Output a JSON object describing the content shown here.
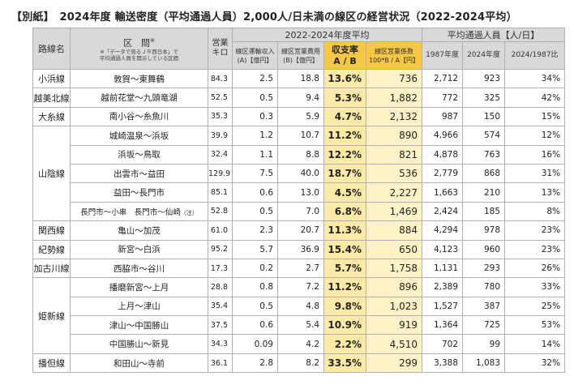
{
  "title": "【別紙】　2024年度 輸送密度（平均通過人員）2,000人/日未満の線区の経営状況（2022-2024平均）",
  "header": {
    "route": "路線名",
    "section": "区　間",
    "section_mark": "※",
    "section_note": "※「データで見るＪＲ西日本」で\n平均通過人員を開示している区間",
    "km": "営業\nキロ",
    "group_2022": "2022-2024年度平均",
    "group_pass": "平均通過人員【人/日】",
    "revenue": "線区運輸収入\n(A)【億円】",
    "cost": "線区営業費用\n(B)【億円】",
    "ratio": "収支率\nA / B",
    "factor": "線区営業係数\n100*B / A【円】",
    "y1987": "1987年度",
    "y2024": "2024年度",
    "change": "2024/1987比"
  },
  "rows": [
    {
      "route": "小浜線",
      "section": "敦賀～東舞鶴",
      "km": "84.3",
      "rev": "2.5",
      "cost": "18.8",
      "ratio": "13.6%",
      "factor": "736",
      "y1987": "2,712",
      "y2024": "923",
      "change": "34%"
    },
    {
      "route": "越美北線",
      "section": "越前花堂～九頭竜湖",
      "km": "52.5",
      "rev": "0.5",
      "cost": "9.4",
      "ratio": "5.3%",
      "factor": "1,882",
      "y1987": "772",
      "y2024": "325",
      "change": "42%"
    },
    {
      "route": "大糸線",
      "section": "南小谷～糸魚川",
      "km": "35.3",
      "rev": "0.3",
      "cost": "5.9",
      "ratio": "4.7%",
      "factor": "2,132",
      "y1987": "987",
      "y2024": "150",
      "change": "15%"
    },
    {
      "route": "山陰線",
      "section": "城崎温泉～浜坂",
      "km": "39.9",
      "rev": "1.2",
      "cost": "10.7",
      "ratio": "11.2%",
      "factor": "890",
      "y1987": "4,966",
      "y2024": "574",
      "change": "12%"
    },
    {
      "route": "",
      "section": "浜坂～鳥取",
      "km": "32.4",
      "rev": "1.1",
      "cost": "8.8",
      "ratio": "12.2%",
      "factor": "821",
      "y1987": "4,878",
      "y2024": "763",
      "change": "16%"
    },
    {
      "route": "",
      "section": "出雲市～益田",
      "km": "129.9",
      "rev": "7.5",
      "cost": "40.0",
      "ratio": "18.7%",
      "factor": "536",
      "y1987": "2,779",
      "y2024": "868",
      "change": "31%"
    },
    {
      "route": "",
      "section": "益田～長門市",
      "km": "85.1",
      "rev": "0.6",
      "cost": "13.0",
      "ratio": "4.5%",
      "factor": "2,227",
      "y1987": "1,663",
      "y2024": "210",
      "change": "13%"
    },
    {
      "route": "",
      "section": "長門市～小串　長門市～仙崎",
      "section_note": "（注）",
      "km": "52.8",
      "rev": "0.5",
      "cost": "7.0",
      "ratio": "6.8%",
      "factor": "1,469",
      "y1987": "2,424",
      "y2024": "185",
      "change": "8%"
    },
    {
      "route": "関西線",
      "section": "亀山～加茂",
      "km": "61.0",
      "rev": "2.3",
      "cost": "20.7",
      "ratio": "11.3%",
      "factor": "884",
      "y1987": "4,294",
      "y2024": "978",
      "change": "23%"
    },
    {
      "route": "紀勢線",
      "section": "新宮～白浜",
      "km": "95.2",
      "rev": "5.7",
      "cost": "36.9",
      "ratio": "15.4%",
      "factor": "650",
      "y1987": "4,123",
      "y2024": "960",
      "change": "23%"
    },
    {
      "route": "加古川線",
      "section": "西脇市～谷川",
      "km": "17.3",
      "rev": "0.2",
      "cost": "2.7",
      "ratio": "5.7%",
      "factor": "1,758",
      "y1987": "1,131",
      "y2024": "293",
      "change": "26%"
    },
    {
      "route": "姫新線",
      "section": "播磨新宮～上月",
      "km": "28.8",
      "rev": "0.8",
      "cost": "7.2",
      "ratio": "11.2%",
      "factor": "896",
      "y1987": "2,389",
      "y2024": "780",
      "change": "33%"
    },
    {
      "route": "",
      "section": "上月～津山",
      "km": "35.4",
      "rev": "0.5",
      "cost": "4.8",
      "ratio": "9.8%",
      "factor": "1,023",
      "y1987": "1,527",
      "y2024": "387",
      "change": "25%"
    },
    {
      "route": "",
      "section": "津山～中国勝山",
      "km": "37.5",
      "rev": "0.6",
      "cost": "5.4",
      "ratio": "10.9%",
      "factor": "919",
      "y1987": "1,364",
      "y2024": "725",
      "change": "53%"
    },
    {
      "route": "",
      "section": "中国勝山～新見",
      "km": "34.3",
      "rev": "0.09",
      "cost": "4.2",
      "ratio": "2.2%",
      "factor": "4,510",
      "y1987": "702",
      "y2024": "99",
      "change": "14%"
    },
    {
      "route": "播但線",
      "section": "和田山～寺前",
      "km": "36.1",
      "rev": "2.8",
      "cost": "8.2",
      "ratio": "33.5%",
      "factor": "299",
      "y1987": "3,388",
      "y2024": "1,083",
      "change": "32%"
    }
  ]
}
